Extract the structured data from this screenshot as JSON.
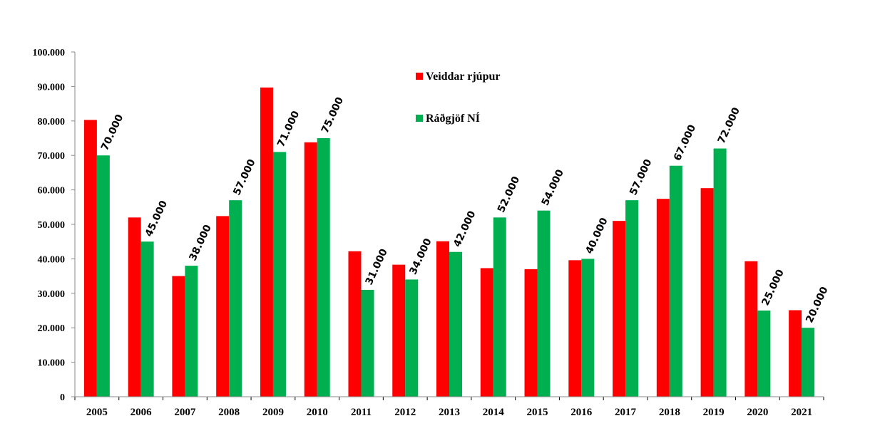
{
  "chart_data": {
    "type": "bar",
    "categories": [
      "2005",
      "2006",
      "2007",
      "2008",
      "2009",
      "2010",
      "2011",
      "2012",
      "2013",
      "2014",
      "2015",
      "2016",
      "2017",
      "2018",
      "2019",
      "2020",
      "2021"
    ],
    "series": [
      {
        "name": "Veiddar rjúpur",
        "color": "#ff0000",
        "values": [
          80300,
          52000,
          35000,
          52400,
          89700,
          73800,
          42200,
          38300,
          45100,
          37300,
          37000,
          39600,
          51000,
          57400,
          60500,
          39300,
          25100
        ]
      },
      {
        "name": "Ráðgjöf NÍ",
        "color": "#00b050",
        "values": [
          70000,
          45000,
          38000,
          57000,
          71000,
          75000,
          31000,
          34000,
          42000,
          52000,
          54000,
          40000,
          57000,
          67000,
          72000,
          25000,
          20000
        ],
        "data_labels": [
          "70.000",
          "45.000",
          "38.000",
          "57.000",
          "71.000",
          "75.000",
          "31.000",
          "34.000",
          "42.000",
          "52.000",
          "54.000",
          "40.000",
          "57.000",
          "67.000",
          "72.000",
          "25.000",
          "20.000"
        ]
      }
    ],
    "ylim": [
      0,
      100000
    ],
    "ytick_labels": [
      "0",
      "10.000",
      "20.000",
      "30.000",
      "40.000",
      "50.000",
      "60.000",
      "70.000",
      "80.000",
      "90.000",
      "100.000"
    ],
    "grid": false,
    "legend_position": "top-center"
  }
}
